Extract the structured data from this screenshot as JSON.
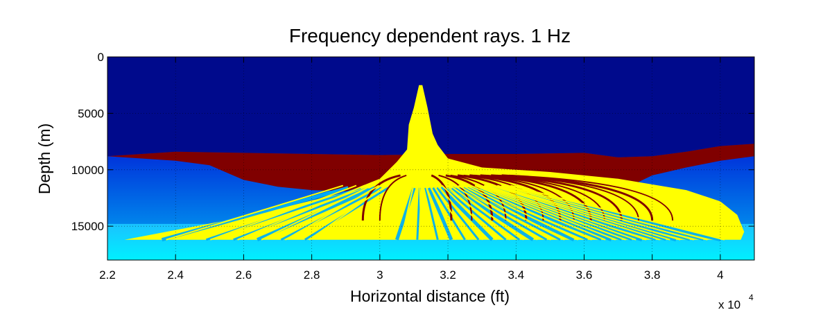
{
  "chart_data": {
    "type": "area",
    "title": "Frequency dependent rays. 1 Hz",
    "xlabel": "Horizontal distance (ft)",
    "ylabel": "Depth (m)",
    "x_exponent_label": "x 10",
    "x_exponent_power": "4",
    "xlim": [
      2.2,
      4.1
    ],
    "ylim": [
      0,
      18000
    ],
    "y_reversed": true,
    "grid": true,
    "x_ticks": [
      {
        "v": 2.2,
        "label": "2.2"
      },
      {
        "v": 2.4,
        "label": "2.4"
      },
      {
        "v": 2.6,
        "label": "2.6"
      },
      {
        "v": 2.8,
        "label": "2.8"
      },
      {
        "v": 3.0,
        "label": "3"
      },
      {
        "v": 3.2,
        "label": "3.2"
      },
      {
        "v": 3.4,
        "label": "3.4"
      },
      {
        "v": 3.6,
        "label": "3.6"
      },
      {
        "v": 3.8,
        "label": "3.8"
      },
      {
        "v": 4.0,
        "label": "4"
      }
    ],
    "y_ticks": [
      {
        "v": 0,
        "label": "0"
      },
      {
        "v": 5000,
        "label": "5000"
      },
      {
        "v": 10000,
        "label": "10000"
      },
      {
        "v": 15000,
        "label": "15000"
      }
    ],
    "colors": {
      "water_top": "#000a8c",
      "sediment_top": "#0026d8",
      "sediment_bottom": "#00aef4",
      "deep_layer_top": "#1ac2ff",
      "deep_layer_bottom": "#00f0ff",
      "salt_body": "#800000",
      "rays": "#ffff00"
    },
    "model_regions": {
      "seafloor_depth": [
        [
          2.2,
          8800
        ],
        [
          2.4,
          8400
        ],
        [
          2.6,
          8500
        ],
        [
          2.8,
          8600
        ],
        [
          3.0,
          8700
        ],
        [
          3.2,
          8600
        ],
        [
          3.4,
          8600
        ],
        [
          3.6,
          8500
        ],
        [
          3.7,
          8900
        ],
        [
          3.8,
          8800
        ],
        [
          3.9,
          8400
        ],
        [
          4.0,
          7900
        ],
        [
          4.1,
          7700
        ]
      ],
      "salt_base_depth": [
        [
          2.2,
          8800
        ],
        [
          2.3,
          9000
        ],
        [
          2.4,
          9200
        ],
        [
          2.5,
          9600
        ],
        [
          2.6,
          10900
        ],
        [
          2.7,
          11500
        ],
        [
          2.8,
          11800
        ],
        [
          2.9,
          11900
        ],
        [
          3.0,
          11400
        ],
        [
          3.1,
          10000
        ],
        [
          3.2,
          10200
        ],
        [
          3.4,
          10400
        ],
        [
          3.6,
          10800
        ],
        [
          3.7,
          11200
        ],
        [
          3.745,
          11300
        ],
        [
          3.8,
          10500
        ],
        [
          3.9,
          9800
        ],
        [
          4.0,
          9200
        ],
        [
          4.1,
          8800
        ]
      ],
      "deep_interface_depth": 14800
    },
    "ray_fan": {
      "source_outline": [
        [
          3.085,
          6000
        ],
        [
          3.1,
          4500
        ],
        [
          3.115,
          2500
        ],
        [
          3.125,
          2500
        ],
        [
          3.14,
          4500
        ],
        [
          3.155,
          6800
        ],
        [
          3.17,
          7800
        ],
        [
          3.2,
          9000
        ],
        [
          3.3,
          9800
        ],
        [
          3.5,
          10200
        ],
        [
          3.7,
          10800
        ],
        [
          3.9,
          11800
        ],
        [
          4.0,
          12800
        ],
        [
          4.05,
          14000
        ],
        [
          4.07,
          15500
        ],
        [
          4.06,
          16200
        ],
        [
          2.25,
          16200
        ],
        [
          2.6,
          14200
        ],
        [
          2.9,
          12000
        ],
        [
          3.0,
          10800
        ],
        [
          3.05,
          9300
        ],
        [
          3.08,
          8200
        ],
        [
          3.085,
          6000
        ]
      ],
      "receiver_depth": 16200,
      "blue_gap_x": [
        2.36,
        2.49,
        2.57,
        2.64,
        2.71,
        2.78,
        3.05,
        3.11,
        3.17,
        3.21,
        3.25,
        3.29,
        3.33,
        3.37,
        3.41,
        3.45,
        3.49,
        3.53,
        3.57,
        3.61,
        3.65,
        3.68,
        3.71,
        3.74,
        3.77,
        3.81,
        3.84,
        3.87,
        3.91,
        3.95,
        4.0
      ],
      "red_gap_x": [
        2.95,
        3.0,
        3.21,
        3.27,
        3.33,
        3.37,
        3.43,
        3.48,
        3.53,
        3.57,
        3.62,
        3.66,
        3.71,
        3.76,
        3.8,
        3.86
      ]
    }
  }
}
